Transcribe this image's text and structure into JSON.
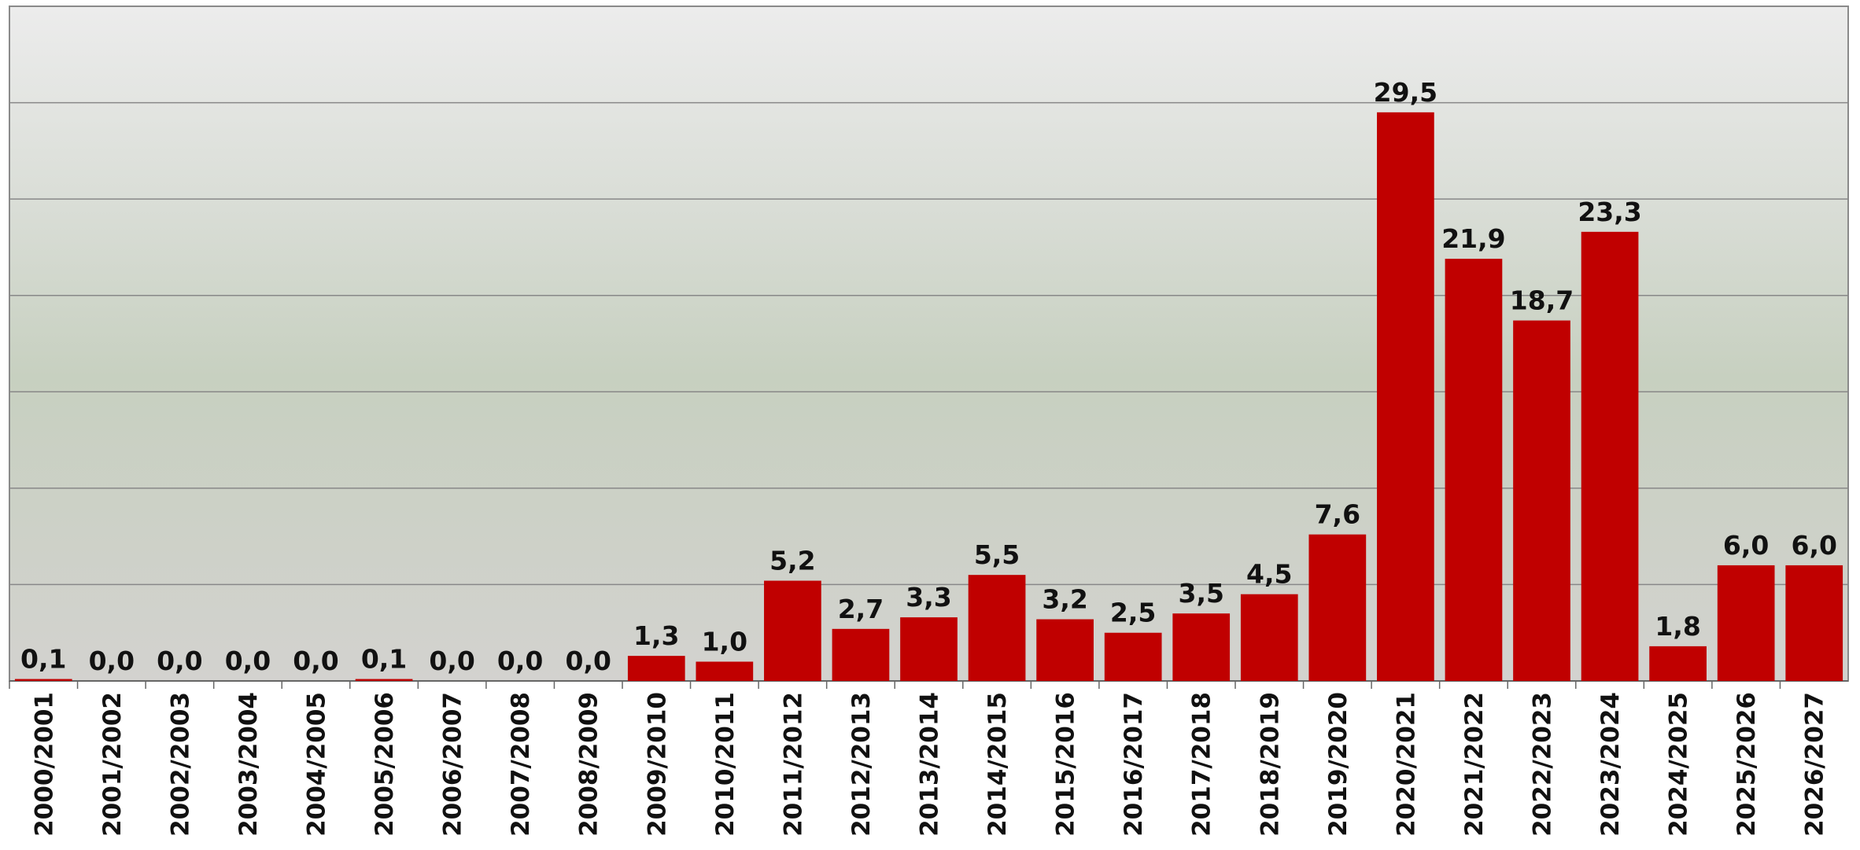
{
  "chart_data": {
    "type": "bar",
    "categories": [
      "2000/2001",
      "2001/2002",
      "2002/2003",
      "2003/2004",
      "2004/2005",
      "2005/2006",
      "2006/2007",
      "2007/2008",
      "2008/2009",
      "2009/2010",
      "2010/2011",
      "2011/2012",
      "2012/2013",
      "2013/2014",
      "2014/2015",
      "2015/2016",
      "2016/2017",
      "2017/2018",
      "2018/2019",
      "2019/2020",
      "2020/2021",
      "2021/2022",
      "2022/2023",
      "2023/2024",
      "2024/2025",
      "2025/2026",
      "2026/2027"
    ],
    "values": [
      0.1,
      0,
      0,
      0,
      0,
      0.1,
      0,
      0,
      0,
      1.3,
      1.0,
      5.2,
      2.7,
      3.3,
      5.5,
      3.2,
      2.5,
      3.5,
      4.5,
      7.6,
      29.5,
      21.9,
      18.7,
      23.3,
      1.8,
      6.0,
      6.0
    ],
    "value_labels": [
      "0,1",
      "0,0",
      "0,0",
      "0,0",
      "0,0",
      "0,1",
      "0,0",
      "0,0",
      "0,0",
      "1,3",
      "1,0",
      "5,2",
      "2,7",
      "3,3",
      "5,5",
      "3,2",
      "2,5",
      "3,5",
      "4,5",
      "7,6",
      "29,5",
      "21,9",
      "18,7",
      "23,3",
      "1,8",
      "6,0",
      "6,0"
    ],
    "color": "#c00000",
    "ylim": [
      0,
      35
    ],
    "yticks": [
      5,
      10,
      15,
      20,
      25,
      30
    ],
    "grid": true
  }
}
